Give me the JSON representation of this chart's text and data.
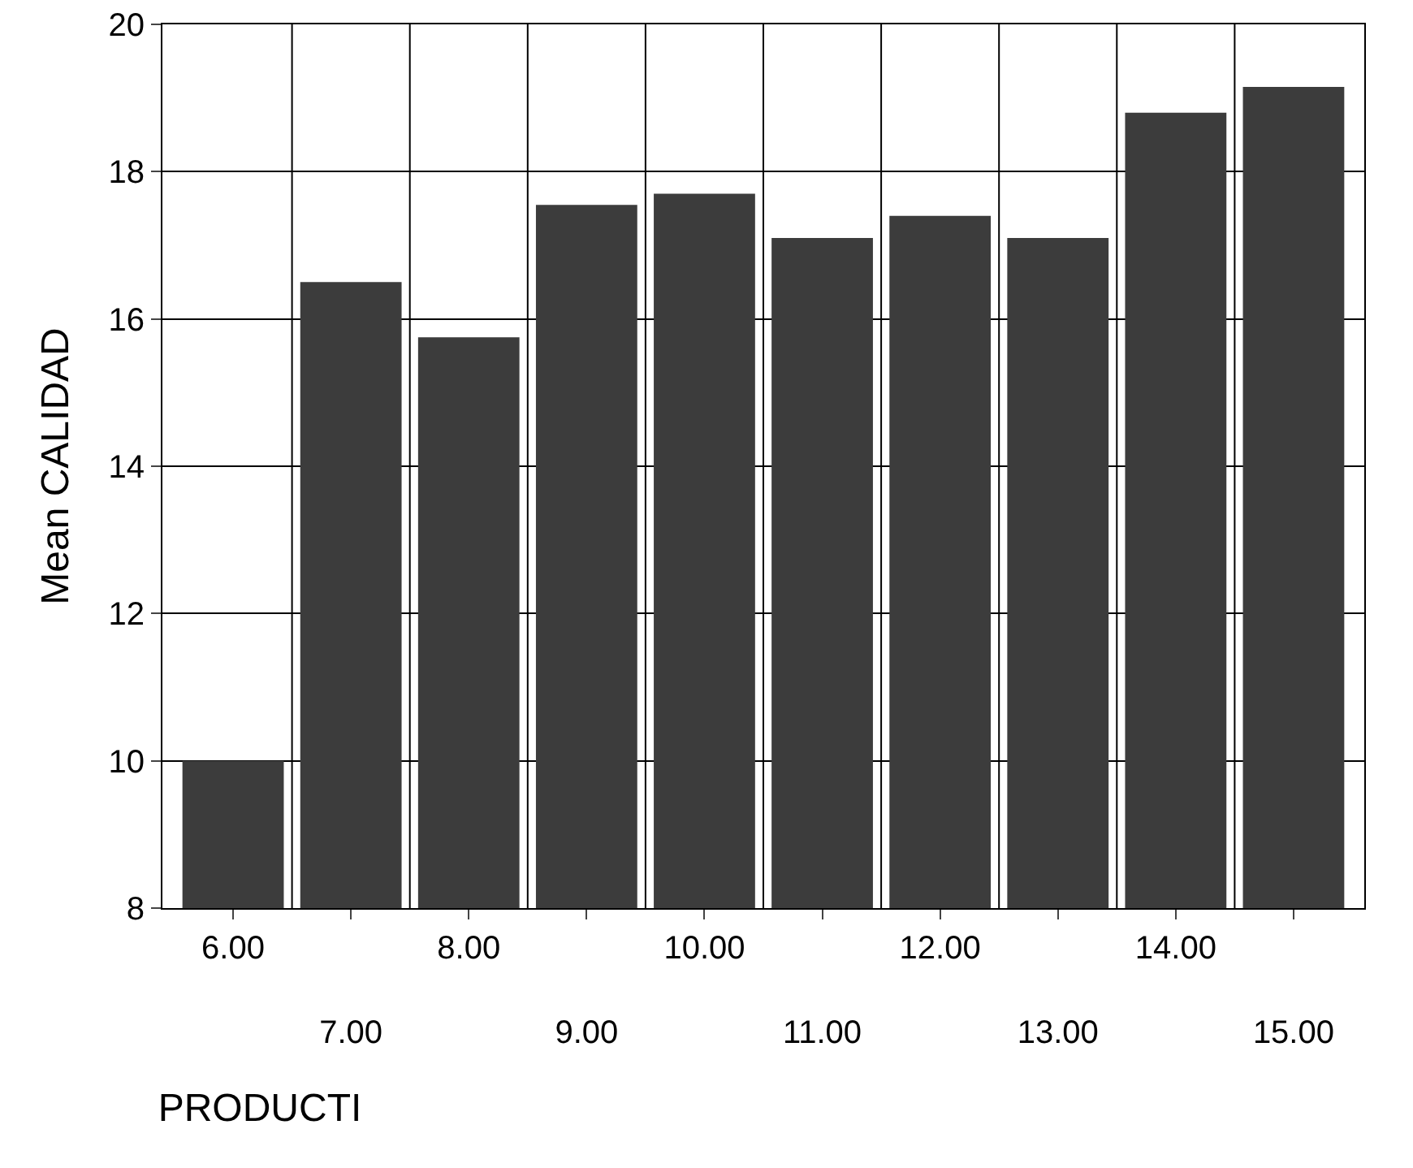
{
  "chart_data": {
    "type": "bar",
    "xlabel": "PRODUCTI",
    "ylabel": "Mean CALIDAD",
    "categories": [
      "6.00",
      "7.00",
      "8.00",
      "9.00",
      "10.00",
      "11.00",
      "12.00",
      "13.00",
      "14.00",
      "15.00"
    ],
    "values": [
      10.0,
      16.5,
      15.75,
      17.55,
      17.7,
      17.1,
      17.4,
      17.1,
      18.8,
      19.15
    ],
    "color": "#3c3c3c",
    "ylim": [
      8,
      20
    ],
    "yticks": [
      8,
      10,
      12,
      14,
      16,
      18,
      20
    ],
    "grid": true,
    "legend": false
  }
}
